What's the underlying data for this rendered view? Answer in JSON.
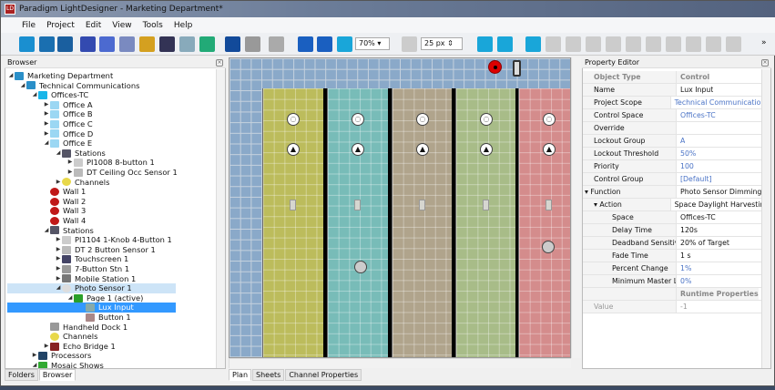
{
  "window": {
    "title": "Paradigm LightDesigner - Marketing Department*",
    "logo": "LD"
  },
  "menu": [
    "File",
    "Project",
    "Edit",
    "View",
    "Tools",
    "Help"
  ],
  "toolbar": {
    "zoom": "70%",
    "grid": "25 px",
    "more": "»"
  },
  "browser": {
    "title": "Browser",
    "tabs": [
      "Folders",
      "Browser"
    ],
    "items": [
      {
        "label": "Marketing Department",
        "level": 0,
        "exp": "open",
        "icon": "building-icon",
        "color": "#2a8fc8"
      },
      {
        "label": "Technical Communications",
        "level": 1,
        "exp": "open",
        "icon": "building-icon",
        "color": "#2a8fc8"
      },
      {
        "label": "Offices-TC",
        "level": 2,
        "exp": "open",
        "icon": "space-icon",
        "color": "#19b6e9"
      },
      {
        "label": "Office A",
        "level": 3,
        "exp": "closed",
        "icon": "room-icon",
        "color": "#9bd7f3"
      },
      {
        "label": "Office B",
        "level": 3,
        "exp": "closed",
        "icon": "room-icon",
        "color": "#9bd7f3"
      },
      {
        "label": "Office C",
        "level": 3,
        "exp": "closed",
        "icon": "room-icon",
        "color": "#9bd7f3"
      },
      {
        "label": "Office D",
        "level": 3,
        "exp": "closed",
        "icon": "room-icon",
        "color": "#9bd7f3"
      },
      {
        "label": "Office E",
        "level": 3,
        "exp": "open",
        "icon": "room-icon",
        "color": "#9bd7f3"
      },
      {
        "label": "Stations",
        "level": 4,
        "exp": "open",
        "icon": "stations-icon",
        "color": "#556"
      },
      {
        "label": "PI1008 8-button 1",
        "level": 5,
        "exp": "closed",
        "icon": "keypad-icon",
        "color": "#ccc"
      },
      {
        "label": "DT Ceiling Occ Sensor 1",
        "level": 5,
        "exp": "closed",
        "icon": "occ-sensor-icon",
        "color": "#bbb"
      },
      {
        "label": "Channels",
        "level": 4,
        "exp": "closed",
        "icon": "bulb-icon",
        "color": "#e8d84a"
      },
      {
        "label": "Wall 1",
        "level": 3,
        "exp": "none",
        "icon": "wall-icon",
        "color": "#c01818"
      },
      {
        "label": "Wall 2",
        "level": 3,
        "exp": "none",
        "icon": "wall-icon",
        "color": "#c01818"
      },
      {
        "label": "Wall 3",
        "level": 3,
        "exp": "none",
        "icon": "wall-icon",
        "color": "#c01818"
      },
      {
        "label": "Wall 4",
        "level": 3,
        "exp": "none",
        "icon": "wall-icon",
        "color": "#c01818"
      },
      {
        "label": "Stations",
        "level": 3,
        "exp": "open",
        "icon": "stations-icon",
        "color": "#556"
      },
      {
        "label": "PI1104 1-Knob 4-Button 1",
        "level": 4,
        "exp": "closed",
        "icon": "keypad-icon",
        "color": "#ccc"
      },
      {
        "label": "DT 2 Button Sensor 1",
        "level": 4,
        "exp": "closed",
        "icon": "keypad-icon",
        "color": "#bbb"
      },
      {
        "label": "Touchscreen 1",
        "level": 4,
        "exp": "closed",
        "icon": "touchscreen-icon",
        "color": "#446"
      },
      {
        "label": "7-Button Stn 1",
        "level": 4,
        "exp": "closed",
        "icon": "keypad-icon",
        "color": "#999"
      },
      {
        "label": "Mobile Station 1",
        "level": 4,
        "exp": "closed",
        "icon": "phone-icon",
        "color": "#777"
      },
      {
        "label": "Photo Sensor 1",
        "level": 4,
        "exp": "open",
        "icon": "photo-sensor-icon",
        "color": "#ddd",
        "state": "hover"
      },
      {
        "label": "Page 1 (active)",
        "level": 5,
        "exp": "open",
        "icon": "page-icon",
        "color": "#2aa02a"
      },
      {
        "label": "Lux Input",
        "level": 6,
        "exp": "none",
        "icon": "lux-input-icon",
        "color": "#8aa",
        "state": "selected"
      },
      {
        "label": "Button 1",
        "level": 6,
        "exp": "none",
        "icon": "button-icon",
        "color": "#a88"
      },
      {
        "label": "Handheld Dock 1",
        "level": 3,
        "exp": "none",
        "icon": "dock-icon",
        "color": "#999"
      },
      {
        "label": "Channels",
        "level": 3,
        "exp": "none",
        "icon": "bulb-icon",
        "color": "#e8d84a"
      },
      {
        "label": "Echo Bridge 1",
        "level": 3,
        "exp": "closed",
        "icon": "bridge-icon",
        "color": "#822"
      },
      {
        "label": "Processors",
        "level": 2,
        "exp": "closed",
        "icon": "processor-icon",
        "color": "#246"
      },
      {
        "label": "Mosaic Shows",
        "level": 2,
        "exp": "open",
        "icon": "mosaic-icon",
        "color": "#3a3"
      }
    ]
  },
  "plan": {
    "tabs": [
      "Plan",
      "Sheets",
      "Channel Properties"
    ],
    "rooms": [
      {
        "color": "#bcbc5c"
      },
      {
        "color": "#78bcb8"
      },
      {
        "color": "#b0a48c"
      },
      {
        "color": "#a8bc88"
      },
      {
        "color": "#d48c8c"
      }
    ]
  },
  "properties": {
    "title": "Property Editor",
    "rows": [
      {
        "key": "Object Type",
        "value": "Control",
        "style": "header"
      },
      {
        "key": "Name",
        "value": "Lux Input"
      },
      {
        "key": "Project Scope",
        "value": "Technical Communications",
        "style": "link"
      },
      {
        "key": "Control Space",
        "value": "Offices-TC",
        "style": "link"
      },
      {
        "key": "Override",
        "value": ""
      },
      {
        "key": "Lockout Group",
        "value": "A",
        "style": "link"
      },
      {
        "key": "Lockout Threshold",
        "value": "50%",
        "style": "link"
      },
      {
        "key": "Priority",
        "value": "100",
        "style": "link"
      },
      {
        "key": "Control Group",
        "value": "[Default]",
        "style": "link"
      },
      {
        "key": "Function",
        "value": "Photo Sensor Dimming",
        "exp": "open",
        "indent": 0
      },
      {
        "key": "Action",
        "value": "Space Daylight Harvesting",
        "exp": "open",
        "indent": 1
      },
      {
        "key": "Space",
        "value": "Offices-TC",
        "indent": 2
      },
      {
        "key": "Delay Time",
        "value": "120s",
        "indent": 2
      },
      {
        "key": "Deadband Sensitivity",
        "value": "20% of Target",
        "indent": 2
      },
      {
        "key": "Fade Time",
        "value": "1 s",
        "indent": 2
      },
      {
        "key": "Percent Change",
        "value": "1%",
        "indent": 2,
        "style": "link"
      },
      {
        "key": "Minimum Master Level",
        "value": "0%",
        "indent": 2,
        "style": "link"
      },
      {
        "key": "",
        "value": "Runtime Properties",
        "style": "header"
      },
      {
        "key": "Value",
        "value": "-1",
        "style": "grey"
      }
    ]
  }
}
